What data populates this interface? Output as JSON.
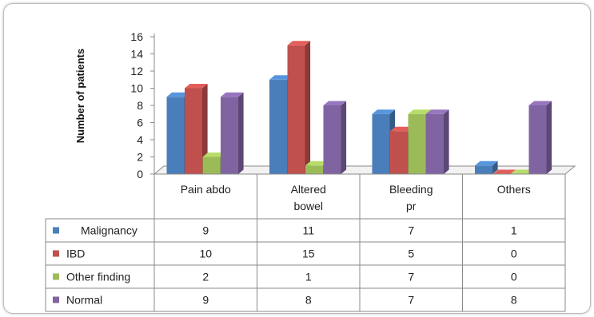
{
  "chart_data": {
    "type": "bar",
    "ylabel": "Number of patients",
    "xlabel": "",
    "ylim": [
      0,
      16
    ],
    "yticks": [
      0,
      2,
      4,
      6,
      8,
      10,
      12,
      14,
      16
    ],
    "categories": [
      "Pain abdo",
      "Altered bowel",
      "Bleeding pr",
      "Others"
    ],
    "series": [
      {
        "name": "Malignancy",
        "color": "#4a7ebb",
        "values": [
          9,
          11,
          7,
          1
        ]
      },
      {
        "name": "IBD",
        "color": "#c0504d",
        "values": [
          10,
          15,
          5,
          0
        ]
      },
      {
        "name": "Other finding",
        "color": "#9bbb59",
        "values": [
          2,
          1,
          7,
          0
        ]
      },
      {
        "name": "Normal",
        "color": "#8064a2",
        "values": [
          9,
          8,
          7,
          8
        ]
      }
    ],
    "style": "3d-clustered-column",
    "grid": false,
    "legend": "data-table"
  }
}
